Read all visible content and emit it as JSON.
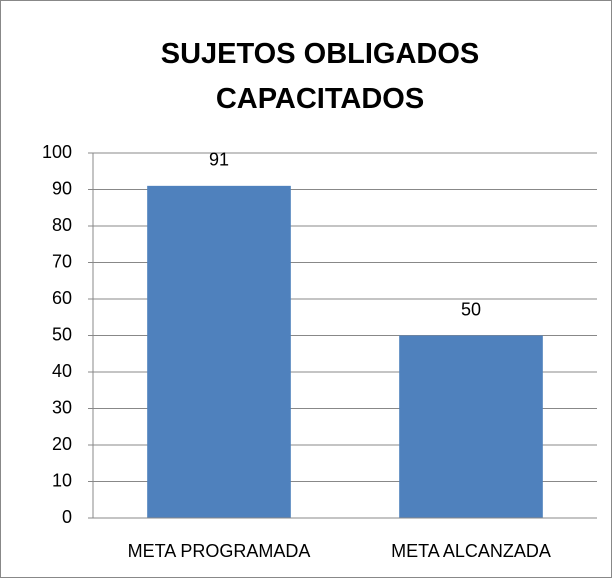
{
  "chart_data": {
    "type": "bar",
    "title": "SUJETOS OBLIGADOS CAPACITADOS",
    "categories": [
      "META PROGRAMADA",
      "META ALCANZADA"
    ],
    "values": [
      91,
      50
    ],
    "color": "#4f81bd",
    "ylim": [
      0,
      100
    ],
    "yticks": [
      0,
      10,
      20,
      30,
      40,
      50,
      60,
      70,
      80,
      90,
      100
    ],
    "grid": true
  }
}
